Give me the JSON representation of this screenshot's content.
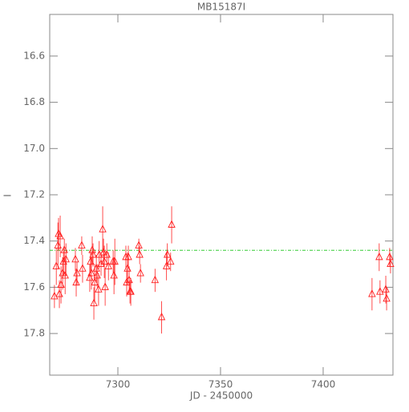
{
  "chart_data": {
    "type": "errorbar-scatter",
    "title": "MB15187I",
    "x_label": "JD - 2450000",
    "y_label": "I",
    "xlim": [
      7266.8,
      7434
    ],
    "xticks": [
      7300,
      7350,
      7400
    ],
    "ylim": [
      17.98,
      16.42
    ],
    "yticks": [
      16.6,
      16.8,
      {
        "value": 17.0,
        "label": "17.0"
      },
      17.2,
      17.4,
      17.6,
      17.8
    ],
    "reference_line": 17.44,
    "reference_color": "#33cc33",
    "series": [
      {
        "color": "#ff2020",
        "x": [
          7269.1,
          7270,
          7270.8,
          7271.1,
          7271.9,
          7271.5,
          7272.3,
          7273.1,
          7273.5,
          7273.9,
          7274.3,
          7274.7,
          7279.3,
          7279.7,
          7280.1,
          7282.4,
          7282.8,
          7286.3,
          7286.7,
          7287.1,
          7287.5,
          7287.9,
          7288.3,
          7288.7,
          7289.5,
          7289.9,
          7290.6,
          7290.9,
          7291.8,
          7292.6,
          7293,
          7293.4,
          7293.8,
          7294.6,
          7295.4,
          7297.7,
          7298.1,
          7298.5,
          7303.9,
          7304.3,
          7304.7,
          7305.1,
          7305.5,
          7305.9,
          7306.3,
          7310.2,
          7310.6,
          7311,
          7318.1,
          7321.3,
          7323.7,
          7324.1,
          7325.7,
          7326.2,
          7423.8,
          7427.3,
          7427.7,
          7430.5,
          7430.9,
          7432.4,
          7432.8
        ],
        "values": [
          17.64,
          17.51,
          17.42,
          17.37,
          17.38,
          17.63,
          17.59,
          17.54,
          17.49,
          17.44,
          17.55,
          17.48,
          17.48,
          17.58,
          17.54,
          17.42,
          17.52,
          17.56,
          17.49,
          17.54,
          17.44,
          17.46,
          17.67,
          17.58,
          17.52,
          17.55,
          17.61,
          17.46,
          17.5,
          17.35,
          17.45,
          17.49,
          17.6,
          17.46,
          17.51,
          17.49,
          17.55,
          17.49,
          17.47,
          17.58,
          17.52,
          17.47,
          17.57,
          17.62,
          17.62,
          17.42,
          17.46,
          17.54,
          17.57,
          17.73,
          17.51,
          17.46,
          17.49,
          17.33,
          17.63,
          17.47,
          17.62,
          17.61,
          17.65,
          17.47,
          17.5
        ],
        "errors": [
          0.05,
          0.08,
          0.1,
          0.07,
          0.09,
          0.06,
          0.08,
          0.07,
          0.06,
          0.05,
          0.08,
          0.07,
          0.05,
          0.06,
          0.05,
          0.04,
          0.06,
          0.06,
          0.05,
          0.07,
          0.06,
          0.05,
          0.07,
          0.08,
          0.06,
          0.05,
          0.07,
          0.06,
          0.05,
          0.1,
          0.06,
          0.07,
          0.08,
          0.05,
          0.06,
          0.05,
          0.08,
          0.1,
          0.05,
          0.06,
          0.07,
          0.05,
          0.06,
          0.05,
          0.06,
          0.03,
          0.04,
          0.04,
          0.05,
          0.07,
          0.06,
          0.05,
          0.04,
          0.08,
          0.07,
          0.06,
          0.05,
          0.06,
          0.05,
          0.04,
          0.04
        ]
      }
    ]
  }
}
